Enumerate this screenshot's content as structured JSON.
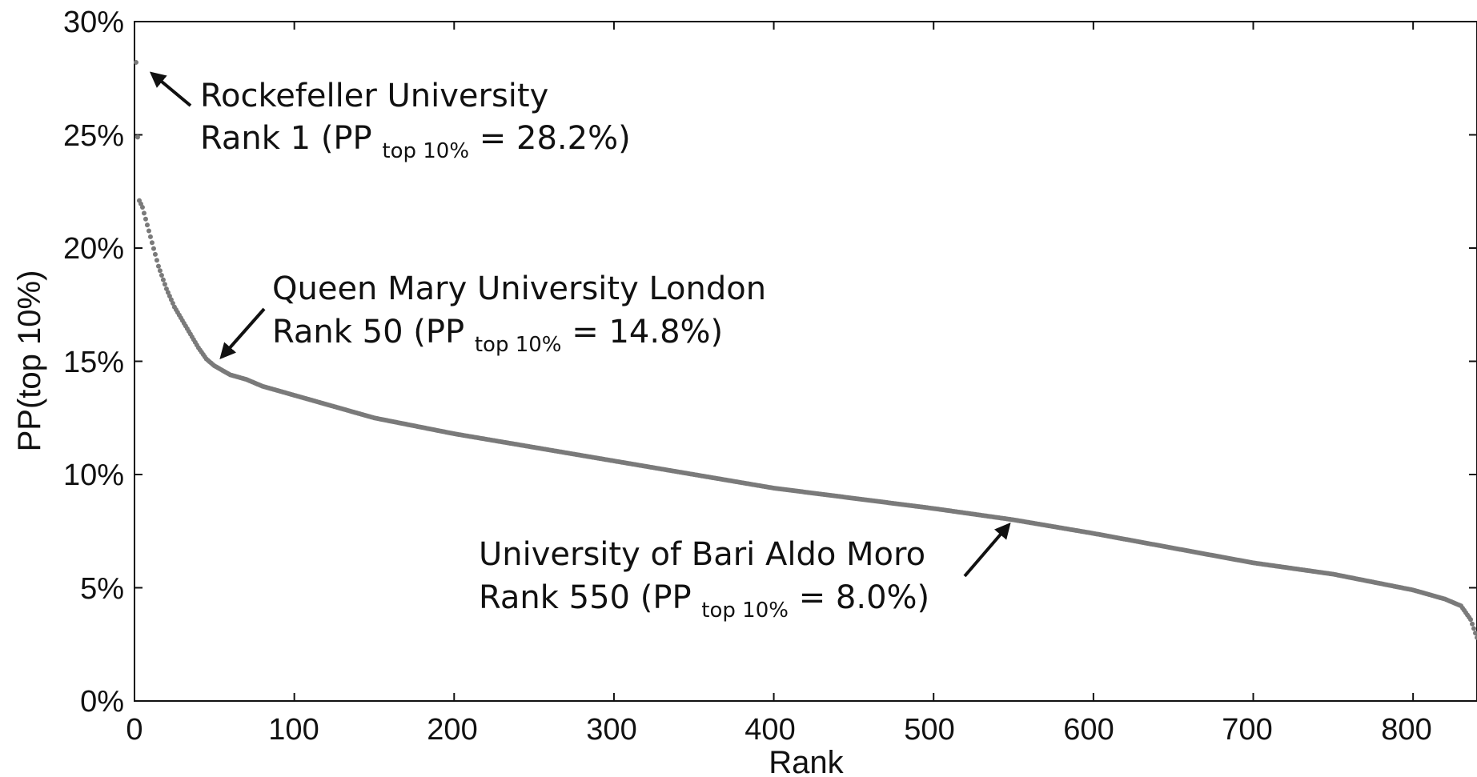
{
  "chart_data": {
    "type": "scatter",
    "title": "",
    "xlabel": "Rank",
    "ylabel": "PP(top 10%)",
    "xlim": [
      0,
      840
    ],
    "ylim": [
      0,
      30
    ],
    "x_ticks": [
      0,
      100,
      200,
      300,
      400,
      500,
      600,
      700,
      800
    ],
    "x_tick_labels": [
      "0",
      "100",
      "200",
      "300",
      "400",
      "500",
      "600",
      "700",
      "800"
    ],
    "y_ticks": [
      0,
      5,
      10,
      15,
      20,
      25,
      30
    ],
    "y_tick_labels": [
      "0%",
      "5%",
      "10%",
      "15%",
      "20%",
      "25%",
      "30%"
    ],
    "grid": false,
    "marker_color": "#7a7a7a",
    "series_profile": {
      "x": [
        1,
        2,
        3,
        5,
        10,
        15,
        20,
        25,
        30,
        35,
        40,
        45,
        50,
        60,
        70,
        80,
        100,
        150,
        200,
        300,
        400,
        500,
        550,
        600,
        700,
        750,
        800,
        820,
        830,
        836,
        840
      ],
      "y": [
        28.2,
        24.9,
        22.1,
        21.8,
        20.5,
        19.2,
        18.2,
        17.4,
        16.8,
        16.2,
        15.6,
        15.1,
        14.8,
        14.4,
        14.2,
        13.9,
        13.5,
        12.5,
        11.8,
        10.6,
        9.4,
        8.5,
        8.0,
        7.4,
        6.1,
        5.6,
        4.9,
        4.5,
        4.2,
        3.6,
        2.8
      ]
    },
    "annotations": [
      {
        "line1": "Rockefeller University",
        "line2_prefix": "Rank 1 (PP",
        "line2_sub": "top 10%",
        "line2_suffix": " = 28.2%)",
        "rank": 1,
        "value": 28.2
      },
      {
        "line1": "Queen Mary University London",
        "line2_prefix": "Rank 50 (PP",
        "line2_sub": "top 10%",
        "line2_suffix": " = 14.8%)",
        "rank": 50,
        "value": 14.8
      },
      {
        "line1": "University of Bari Aldo Moro",
        "line2_prefix": "Rank 550 (PP",
        "line2_sub": "top 10%",
        "line2_suffix": " = 8.0%)",
        "rank": 550,
        "value": 8.0
      }
    ]
  }
}
